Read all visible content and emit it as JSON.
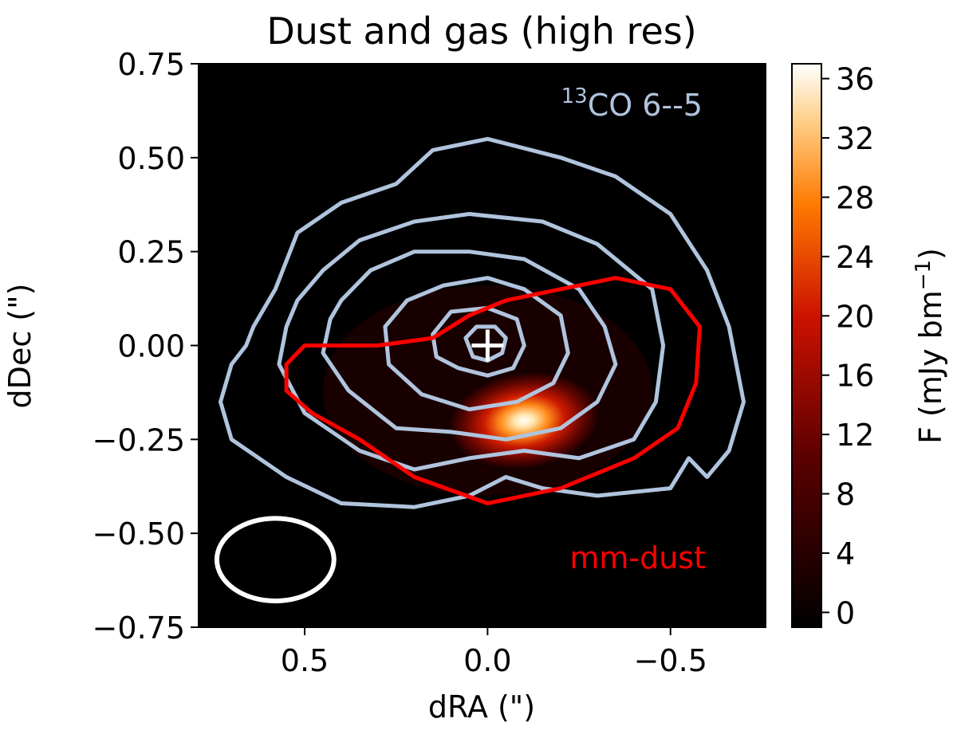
{
  "chart_data": {
    "type": "heatmap",
    "title": "Dust and gas (high res)",
    "xlabel": "dRA (\")",
    "ylabel": "dDec (\")",
    "xlim": [
      0.79,
      -0.76
    ],
    "ylim": [
      -0.75,
      0.75
    ],
    "x_ticks": [
      {
        "value": 0.5,
        "label": "0.5"
      },
      {
        "value": 0.0,
        "label": "0.0"
      },
      {
        "value": -0.5,
        "label": "−0.5"
      }
    ],
    "y_ticks": [
      {
        "value": 0.75,
        "label": "0.75"
      },
      {
        "value": 0.5,
        "label": "0.50"
      },
      {
        "value": 0.25,
        "label": "0.25"
      },
      {
        "value": 0.0,
        "label": "0.00"
      },
      {
        "value": -0.25,
        "label": "−0.25"
      },
      {
        "value": -0.5,
        "label": "−0.50"
      },
      {
        "value": -0.75,
        "label": "−0.75"
      }
    ],
    "colorbar": {
      "label": "F (mJy bm",
      "label_sup": "−1",
      "label_end": ")",
      "range": [
        -1,
        37
      ],
      "ticks": [
        {
          "value": 0,
          "label": "0"
        },
        {
          "value": 4,
          "label": "4"
        },
        {
          "value": 8,
          "label": "8"
        },
        {
          "value": 12,
          "label": "12"
        },
        {
          "value": 16,
          "label": "16"
        },
        {
          "value": 20,
          "label": "20"
        },
        {
          "value": 24,
          "label": "24"
        },
        {
          "value": 28,
          "label": "28"
        },
        {
          "value": 32,
          "label": "32"
        },
        {
          "value": 36,
          "label": "36"
        }
      ],
      "colormap": "gist_heat"
    },
    "image": {
      "name": "dust continuum",
      "peak_value": 36,
      "peak_position": [
        -0.1,
        -0.2
      ],
      "major_axis": 0.22,
      "minor_axis": 0.085,
      "position_angle_deg": -8
    },
    "contours": [
      {
        "name": "13CO 6--5",
        "color": "#b0c4de",
        "levels": [
          [
            [
              0.64,
              0.05
            ],
            [
              0.58,
              0.15
            ],
            [
              0.52,
              0.3
            ],
            [
              0.4,
              0.38
            ],
            [
              0.25,
              0.43
            ],
            [
              0.15,
              0.52
            ],
            [
              0.0,
              0.55
            ],
            [
              -0.2,
              0.5
            ],
            [
              -0.35,
              0.45
            ],
            [
              -0.5,
              0.35
            ],
            [
              -0.6,
              0.2
            ],
            [
              -0.66,
              0.05
            ],
            [
              -0.7,
              -0.15
            ],
            [
              -0.66,
              -0.28
            ],
            [
              -0.6,
              -0.35
            ],
            [
              -0.55,
              -0.3
            ],
            [
              -0.5,
              -0.38
            ],
            [
              -0.3,
              -0.4
            ],
            [
              -0.15,
              -0.38
            ],
            [
              -0.05,
              -0.35
            ],
            [
              0.05,
              -0.4
            ],
            [
              0.2,
              -0.43
            ],
            [
              0.4,
              -0.42
            ],
            [
              0.55,
              -0.35
            ],
            [
              0.7,
              -0.25
            ],
            [
              0.73,
              -0.15
            ],
            [
              0.7,
              -0.05
            ],
            [
              0.66,
              0.0
            ]
          ],
          [
            [
              0.52,
              0.12
            ],
            [
              0.45,
              0.2
            ],
            [
              0.35,
              0.28
            ],
            [
              0.2,
              0.33
            ],
            [
              0.05,
              0.35
            ],
            [
              -0.15,
              0.33
            ],
            [
              -0.3,
              0.27
            ],
            [
              -0.45,
              0.15
            ],
            [
              -0.48,
              0.0
            ],
            [
              -0.46,
              -0.15
            ],
            [
              -0.4,
              -0.25
            ],
            [
              -0.25,
              -0.3
            ],
            [
              -0.1,
              -0.28
            ],
            [
              0.05,
              -0.3
            ],
            [
              0.2,
              -0.33
            ],
            [
              0.35,
              -0.28
            ],
            [
              0.5,
              -0.18
            ],
            [
              0.57,
              -0.05
            ],
            [
              0.55,
              0.05
            ]
          ],
          [
            [
              0.4,
              0.12
            ],
            [
              0.32,
              0.2
            ],
            [
              0.2,
              0.25
            ],
            [
              0.05,
              0.25
            ],
            [
              -0.1,
              0.23
            ],
            [
              -0.25,
              0.15
            ],
            [
              -0.32,
              0.05
            ],
            [
              -0.35,
              -0.05
            ],
            [
              -0.3,
              -0.15
            ],
            [
              -0.2,
              -0.22
            ],
            [
              -0.05,
              -0.25
            ],
            [
              0.1,
              -0.23
            ],
            [
              0.25,
              -0.22
            ],
            [
              0.38,
              -0.12
            ],
            [
              0.45,
              -0.02
            ],
            [
              0.43,
              0.07
            ]
          ],
          [
            [
              0.28,
              0.05
            ],
            [
              0.22,
              0.12
            ],
            [
              0.12,
              0.16
            ],
            [
              0.0,
              0.18
            ],
            [
              -0.1,
              0.15
            ],
            [
              -0.2,
              0.08
            ],
            [
              -0.22,
              -0.02
            ],
            [
              -0.18,
              -0.1
            ],
            [
              -0.08,
              -0.15
            ],
            [
              0.05,
              -0.17
            ],
            [
              0.18,
              -0.13
            ],
            [
              0.27,
              -0.05
            ]
          ],
          [
            [
              0.15,
              0.03
            ],
            [
              0.1,
              0.09
            ],
            [
              0.0,
              0.1
            ],
            [
              -0.08,
              0.07
            ],
            [
              -0.1,
              0.0
            ],
            [
              -0.07,
              -0.06
            ],
            [
              0.0,
              -0.08
            ],
            [
              0.08,
              -0.06
            ],
            [
              0.14,
              -0.03
            ]
          ],
          [
            [
              0.06,
              0.02
            ],
            [
              0.03,
              0.05
            ],
            [
              -0.02,
              0.05
            ],
            [
              -0.05,
              0.02
            ],
            [
              -0.04,
              -0.02
            ],
            [
              0.0,
              -0.04
            ],
            [
              0.04,
              -0.03
            ]
          ]
        ]
      },
      {
        "name": "mm-dust",
        "color": "#ff0000",
        "levels": [
          [
            [
              0.55,
              -0.05
            ],
            [
              0.5,
              0.0
            ],
            [
              0.4,
              0.0
            ],
            [
              0.3,
              0.0
            ],
            [
              0.15,
              0.02
            ],
            [
              0.05,
              0.08
            ],
            [
              -0.05,
              0.12
            ],
            [
              -0.2,
              0.15
            ],
            [
              -0.35,
              0.18
            ],
            [
              -0.5,
              0.15
            ],
            [
              -0.58,
              0.05
            ],
            [
              -0.57,
              -0.1
            ],
            [
              -0.52,
              -0.22
            ],
            [
              -0.4,
              -0.3
            ],
            [
              -0.2,
              -0.38
            ],
            [
              0.0,
              -0.42
            ],
            [
              0.2,
              -0.35
            ],
            [
              0.35,
              -0.25
            ],
            [
              0.48,
              -0.18
            ],
            [
              0.55,
              -0.12
            ]
          ]
        ]
      }
    ],
    "marker": {
      "type": "plus",
      "x": 0.0,
      "y": 0.0,
      "color": "#ffffff"
    },
    "beam": {
      "x": 0.58,
      "y": -0.57,
      "major": 0.16,
      "minor": 0.11,
      "color": "#ffffff"
    },
    "annotations": {
      "co_line": {
        "superscript": "13",
        "text": "CO 6--5",
        "color": "#b0c4de"
      },
      "dust_label": {
        "text": "mm-dust",
        "color": "#ff0000"
      }
    }
  }
}
